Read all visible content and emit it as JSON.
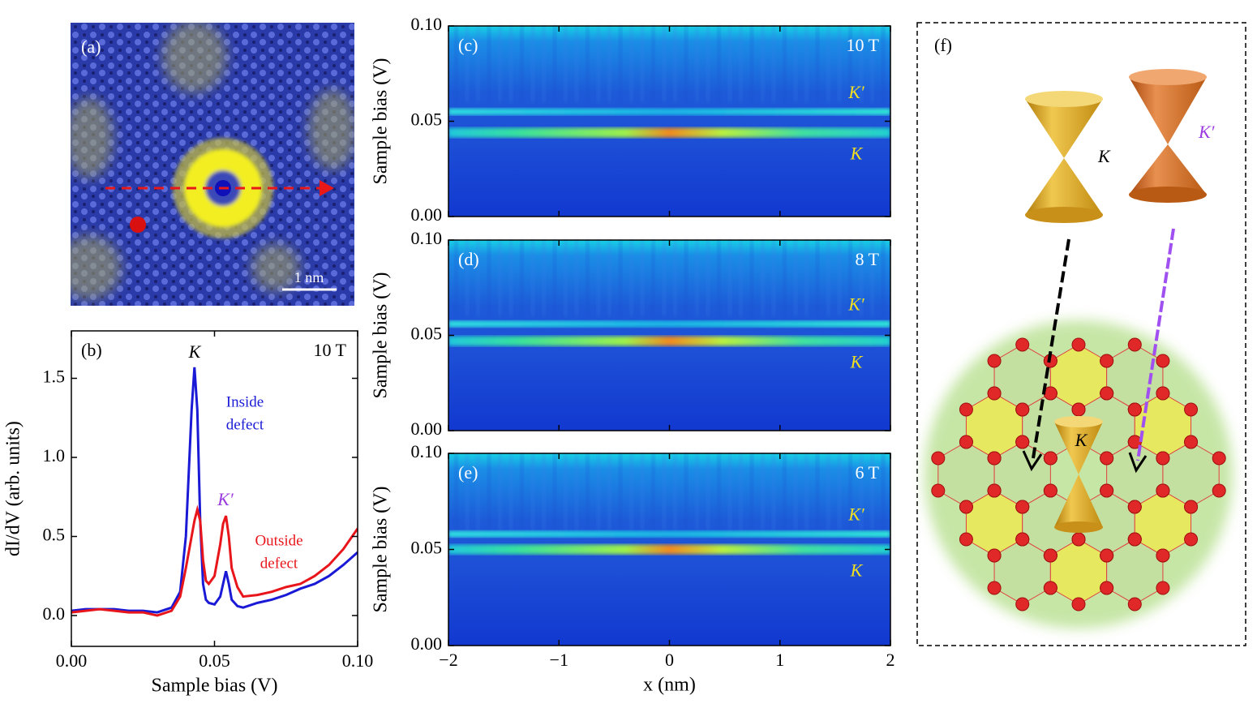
{
  "image_panel": {
    "label": "(a)",
    "scale_bar": "1 nm"
  },
  "chart_data": [
    {
      "type": "line",
      "panel_label": "(b)",
      "field": "10 T",
      "xlabel": "Sample bias (V)",
      "ylabel": "dI/dV (arb. units)",
      "xlim": [
        0,
        0.1
      ],
      "ylim": [
        -0.195,
        1.8
      ],
      "xticks": [
        {
          "value": 0,
          "label": "0.00"
        },
        {
          "value": 0.05,
          "label": "0.05"
        },
        {
          "value": 0.1,
          "label": "0.10"
        }
      ],
      "yticks": [
        {
          "value": 0,
          "label": "0.0"
        },
        0.5,
        {
          "value": 1,
          "label": "1.0"
        },
        1.5
      ],
      "x": [
        0,
        0.005,
        0.01,
        0.015,
        0.02,
        0.025,
        0.03,
        0.035,
        0.038,
        0.04,
        0.042,
        0.043,
        0.044,
        0.045,
        0.046,
        0.047,
        0.048,
        0.05,
        0.052,
        0.053,
        0.054,
        0.055,
        0.056,
        0.058,
        0.06,
        0.065,
        0.07,
        0.075,
        0.08,
        0.085,
        0.09,
        0.095,
        0.1
      ],
      "series": [
        {
          "color": "#1a1ad6",
          "values": [
            0.03,
            0.04,
            0.04,
            0.04,
            0.03,
            0.03,
            0.02,
            0.05,
            0.15,
            0.5,
            1.3,
            1.57,
            1.3,
            0.6,
            0.2,
            0.1,
            0.08,
            0.07,
            0.12,
            0.2,
            0.28,
            0.2,
            0.1,
            0.06,
            0.05,
            0.08,
            0.1,
            0.13,
            0.17,
            0.2,
            0.25,
            0.32,
            0.4
          ]
        },
        {
          "color": "#e8161b",
          "values": [
            0.02,
            0.03,
            0.04,
            0.03,
            0.02,
            0.02,
            0.0,
            0.03,
            0.12,
            0.3,
            0.5,
            0.6,
            0.67,
            0.6,
            0.35,
            0.22,
            0.2,
            0.25,
            0.45,
            0.58,
            0.63,
            0.5,
            0.3,
            0.18,
            0.12,
            0.13,
            0.15,
            0.18,
            0.2,
            0.25,
            0.32,
            0.42,
            0.55
          ]
        }
      ],
      "annotations": [
        {
          "text": "K",
          "color": "#000000"
        },
        {
          "text": "Inside",
          "color": "#1a1ad6"
        },
        {
          "text": "defect",
          "color": "#1a1ad6"
        },
        {
          "text": "K′",
          "color": "#9b3be0"
        },
        {
          "text": "Outside",
          "color": "#e8161b"
        },
        {
          "text": "defect",
          "color": "#e8161b"
        }
      ]
    },
    {
      "type": "heatmap",
      "panel_label": "(c)",
      "field": "10 T",
      "ylabel": "Sample bias (V)",
      "xlim": [
        -2,
        2
      ],
      "ylim": [
        0,
        0.1
      ],
      "xticks": [
        -2,
        -1,
        0,
        1,
        2
      ],
      "yticks": [
        {
          "value": 0,
          "label": "0.00"
        },
        {
          "value": 0.05,
          "label": "0.05"
        },
        {
          "value": 0.1,
          "label": "0.10"
        }
      ],
      "bands": [
        0.044,
        0.055
      ],
      "band_labels": [
        "K",
        "K′"
      ]
    },
    {
      "type": "heatmap",
      "panel_label": "(d)",
      "field": "8 T",
      "ylabel": "Sample bias (V)",
      "xlim": [
        -2,
        2
      ],
      "ylim": [
        0,
        0.1
      ],
      "xticks": [
        -2,
        -1,
        0,
        1,
        2
      ],
      "yticks": [
        {
          "value": 0,
          "label": "0.00"
        },
        {
          "value": 0.05,
          "label": "0.05"
        },
        {
          "value": 0.1,
          "label": "0.10"
        }
      ],
      "bands": [
        0.047,
        0.056
      ],
      "band_labels": [
        "K",
        "K′"
      ]
    },
    {
      "type": "heatmap",
      "panel_label": "(e)",
      "field": "6 T",
      "ylabel": "Sample bias (V)",
      "xlabel": "x (nm)",
      "xlim": [
        -2,
        2
      ],
      "ylim": [
        0,
        0.1
      ],
      "xticks": [
        {
          "value": -2,
          "label": "−2"
        },
        {
          "value": -1,
          "label": "−1"
        },
        0,
        1,
        2
      ],
      "yticks": [
        {
          "value": 0,
          "label": "0.00"
        },
        {
          "value": 0.05,
          "label": "0.05"
        },
        {
          "value": 0.1,
          "label": "0.10"
        }
      ],
      "bands": [
        0.05,
        0.058
      ],
      "band_labels": [
        "K",
        "K′"
      ]
    }
  ],
  "diagram": {
    "label": "(f)",
    "top_cone_labels": [
      "K",
      "K′"
    ],
    "center_cone_label": "K"
  }
}
